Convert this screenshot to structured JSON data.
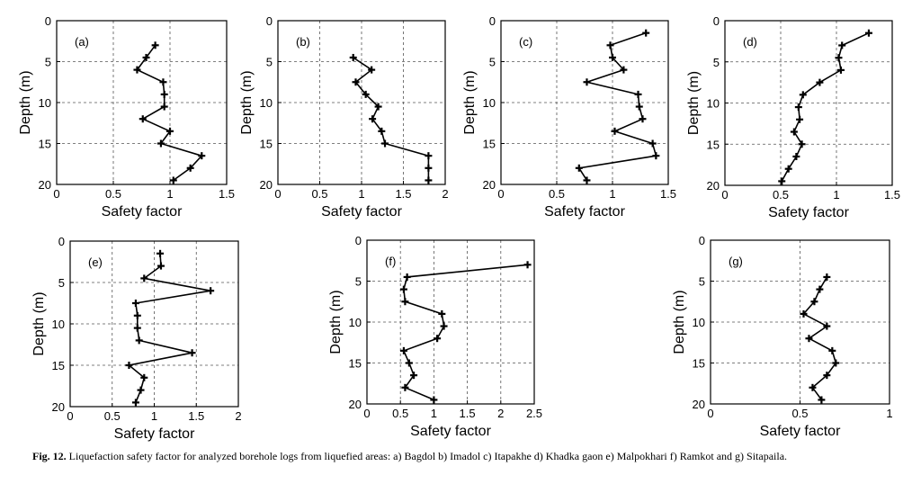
{
  "caption": {
    "label": "Fig. 12.",
    "text": "Liquefaction safety factor for analyzed borehole logs from liquefied areas: a) Bagdol b) Imadol c) Itapakhe d) Khadka gaon e) Malpokhari f) Ramkot and g) Sitapaila."
  },
  "chart_data": [
    {
      "type": "line",
      "panel_label": "(a)",
      "xlabel": "Safety factor",
      "ylabel": "Depth (m)",
      "xlim": [
        0,
        1.5
      ],
      "ylim": [
        20,
        0
      ],
      "y_inverted": true,
      "xticks": [
        "0",
        "0.5",
        "1",
        "1.5"
      ],
      "yticks": [
        "0",
        "5",
        "10",
        "15",
        "20"
      ],
      "grid": "dashed",
      "points": [
        [
          0.87,
          3
        ],
        [
          0.79,
          4.5
        ],
        [
          0.71,
          6
        ],
        [
          0.94,
          7.5
        ],
        [
          0.95,
          9
        ],
        [
          0.95,
          10.5
        ],
        [
          0.76,
          12
        ],
        [
          1.0,
          13.5
        ],
        [
          0.92,
          15
        ],
        [
          1.28,
          16.5
        ],
        [
          1.18,
          18
        ],
        [
          1.03,
          19.5
        ]
      ]
    },
    {
      "type": "line",
      "panel_label": "(b)",
      "xlabel": "Safety factor",
      "ylabel": "Depth (m)",
      "xlim": [
        0,
        2
      ],
      "ylim": [
        20,
        0
      ],
      "y_inverted": true,
      "xticks": [
        "0",
        "0.5",
        "1",
        "1.5",
        "2"
      ],
      "yticks": [
        "0",
        "5",
        "10",
        "15",
        "20"
      ],
      "grid": "dashed",
      "points": [
        [
          0.9,
          4.5
        ],
        [
          1.12,
          6
        ],
        [
          0.93,
          7.5
        ],
        [
          1.05,
          9
        ],
        [
          1.2,
          10.5
        ],
        [
          1.13,
          12
        ],
        [
          1.24,
          13.5
        ],
        [
          1.28,
          15
        ],
        [
          1.8,
          16.5
        ],
        [
          1.8,
          18
        ],
        [
          1.8,
          19.5
        ]
      ]
    },
    {
      "type": "line",
      "panel_label": "(c)",
      "xlabel": "Safety factor",
      "ylabel": "Depth (m)",
      "xlim": [
        0,
        1.5
      ],
      "ylim": [
        20,
        0
      ],
      "y_inverted": true,
      "xticks": [
        "0",
        "0.5",
        "1",
        "1.5"
      ],
      "yticks": [
        "0",
        "5",
        "10",
        "15",
        "20"
      ],
      "grid": "dashed",
      "points": [
        [
          1.3,
          1.5
        ],
        [
          0.98,
          3
        ],
        [
          1.0,
          4.5
        ],
        [
          1.1,
          6
        ],
        [
          0.77,
          7.5
        ],
        [
          1.23,
          9
        ],
        [
          1.24,
          10.5
        ],
        [
          1.27,
          12
        ],
        [
          1.02,
          13.5
        ],
        [
          1.36,
          15
        ],
        [
          1.39,
          16.5
        ],
        [
          0.7,
          18
        ],
        [
          0.77,
          19.5
        ]
      ]
    },
    {
      "type": "line",
      "panel_label": "(d)",
      "xlabel": "Safety factor",
      "ylabel": "Depth (m)",
      "xlim": [
        0,
        1.5
      ],
      "ylim": [
        20,
        0
      ],
      "y_inverted": true,
      "xticks": [
        "0",
        "0.5",
        "1",
        "1.5"
      ],
      "yticks": [
        "0",
        "5",
        "10",
        "15",
        "20"
      ],
      "grid": "dashed",
      "points": [
        [
          1.29,
          1.5
        ],
        [
          1.05,
          3
        ],
        [
          1.02,
          4.5
        ],
        [
          1.04,
          6
        ],
        [
          0.85,
          7.5
        ],
        [
          0.7,
          9
        ],
        [
          0.66,
          10.5
        ],
        [
          0.67,
          12
        ],
        [
          0.62,
          13.5
        ],
        [
          0.69,
          15
        ],
        [
          0.64,
          16.5
        ],
        [
          0.57,
          18
        ],
        [
          0.51,
          19.5
        ]
      ]
    },
    {
      "type": "line",
      "panel_label": "(e)",
      "xlabel": "Safety factor",
      "ylabel": "Depth (m)",
      "xlim": [
        0,
        2
      ],
      "ylim": [
        20,
        0
      ],
      "y_inverted": true,
      "xticks": [
        "0",
        "0.5",
        "1",
        "1.5",
        "2"
      ],
      "yticks": [
        "0",
        "5",
        "10",
        "15",
        "20"
      ],
      "grid": "dashed",
      "points": [
        [
          1.07,
          1.5
        ],
        [
          1.08,
          3
        ],
        [
          0.88,
          4.5
        ],
        [
          1.67,
          6
        ],
        [
          0.78,
          7.5
        ],
        [
          0.8,
          9
        ],
        [
          0.8,
          10.5
        ],
        [
          0.82,
          12
        ],
        [
          1.45,
          13.5
        ],
        [
          0.7,
          15
        ],
        [
          0.88,
          16.5
        ],
        [
          0.84,
          18
        ],
        [
          0.78,
          19.5
        ]
      ]
    },
    {
      "type": "line",
      "panel_label": "(f)",
      "xlabel": "Safety factor",
      "ylabel": "Depth (m)",
      "xlim": [
        0,
        2.5
      ],
      "ylim": [
        20,
        0
      ],
      "y_inverted": true,
      "xticks": [
        "0",
        "0.5",
        "1",
        "1.5",
        "2",
        "2.5"
      ],
      "yticks": [
        "0",
        "5",
        "10",
        "15",
        "20"
      ],
      "grid": "dashed",
      "points": [
        [
          2.4,
          3
        ],
        [
          0.6,
          4.5
        ],
        [
          0.55,
          6
        ],
        [
          0.57,
          7.5
        ],
        [
          1.12,
          9
        ],
        [
          1.15,
          10.5
        ],
        [
          1.05,
          12
        ],
        [
          0.55,
          13.5
        ],
        [
          0.63,
          15
        ],
        [
          0.7,
          16.5
        ],
        [
          0.57,
          18
        ],
        [
          1.0,
          19.5
        ]
      ]
    },
    {
      "type": "line",
      "panel_label": "(g)",
      "xlabel": "Safety factor",
      "ylabel": "Depth (m)",
      "xlim": [
        0,
        1
      ],
      "ylim": [
        20,
        0
      ],
      "y_inverted": true,
      "xticks": [
        "0",
        "0.5",
        "1"
      ],
      "yticks": [
        "0",
        "5",
        "10",
        "15",
        "20"
      ],
      "grid": "dashed",
      "points": [
        [
          0.65,
          4.5
        ],
        [
          0.61,
          6
        ],
        [
          0.58,
          7.5
        ],
        [
          0.52,
          9
        ],
        [
          0.65,
          10.5
        ],
        [
          0.55,
          12
        ],
        [
          0.68,
          13.5
        ],
        [
          0.7,
          15
        ],
        [
          0.65,
          16.5
        ],
        [
          0.57,
          18
        ],
        [
          0.62,
          19.5
        ]
      ]
    }
  ]
}
